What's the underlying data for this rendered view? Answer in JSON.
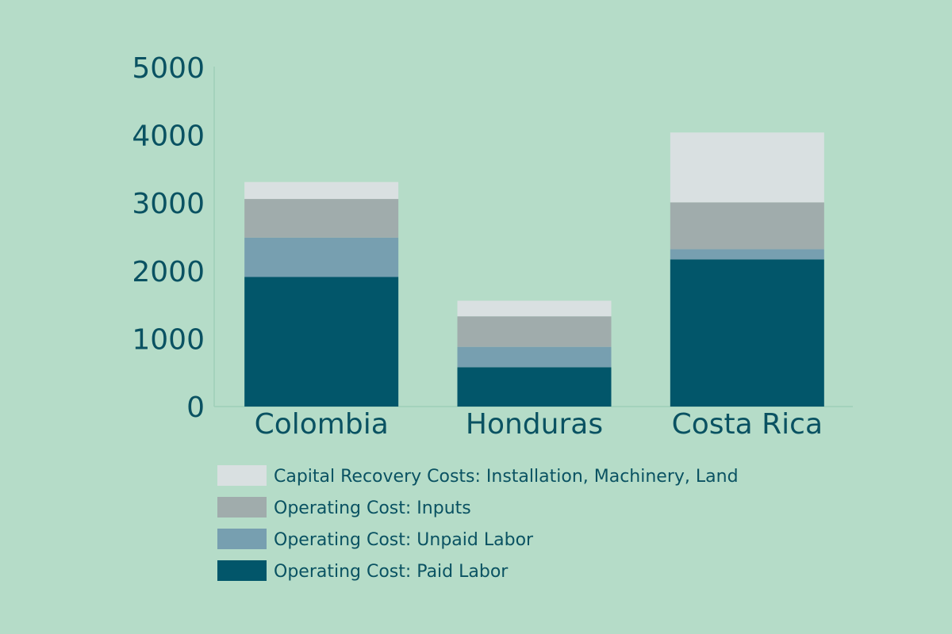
{
  "chart_data": {
    "type": "bar",
    "stacked": true,
    "title": "",
    "xlabel": "",
    "ylabel": "",
    "ylim": [
      0,
      5000
    ],
    "yticks": [
      "0",
      "1000",
      "2000",
      "3000",
      "4000",
      "5000"
    ],
    "categories": [
      "Colombia",
      "Honduras",
      "Costa Rica"
    ],
    "grid": false,
    "legend_position": "bottom",
    "series": [
      {
        "name": "Operating Cost: Paid Labor",
        "color": "#02566a",
        "values": [
          1910,
          580,
          2170
        ]
      },
      {
        "name": "Operating Cost: Unpaid Labor",
        "color": "#779fb0",
        "values": [
          580,
          300,
          150
        ]
      },
      {
        "name": "Operating Cost: Inputs",
        "color": "#a0acac",
        "values": [
          570,
          450,
          690
        ]
      },
      {
        "name": "Capital Recovery Costs: Installation, Machinery, Land",
        "color": "#d9e0e1",
        "values": [
          250,
          230,
          1030
        ]
      }
    ],
    "legend_order": [
      3,
      2,
      1,
      0
    ]
  }
}
